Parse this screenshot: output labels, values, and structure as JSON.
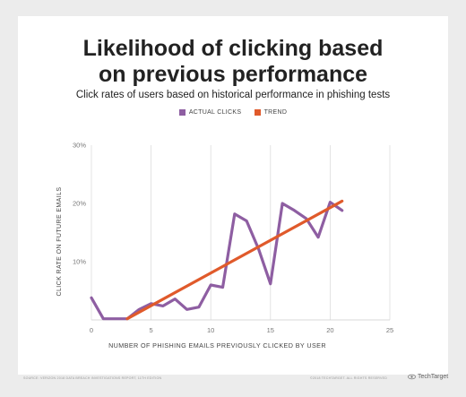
{
  "header": {
    "title_line1": "Likelihood of clicking based",
    "title_line2": "on previous performance",
    "subtitle": "Click rates of users based on historical performance in phishing tests"
  },
  "legend": {
    "items": [
      {
        "label": "ACTUAL CLICKS",
        "color": "#8e5ea2"
      },
      {
        "label": "TREND",
        "color": "#e05a2b"
      }
    ]
  },
  "chart_data": {
    "type": "line",
    "xlabel": "NUMBER OF PHISHING EMAILS PREVIOUSLY CLICKED BY USER",
    "ylabel": "CLICK RATE ON FUTURE EMAILS",
    "xlim": [
      0,
      25
    ],
    "ylim": [
      0,
      30
    ],
    "x_ticks": [
      0,
      5,
      10,
      15,
      20,
      25
    ],
    "y_ticks": [
      10,
      20,
      30
    ],
    "y_tick_labels": [
      "10%",
      "20%",
      "30%"
    ],
    "grid": "vertical",
    "series": [
      {
        "name": "ACTUAL CLICKS",
        "color": "#8e5ea2",
        "x": [
          0,
          1,
          2,
          3,
          4,
          5,
          6,
          7,
          8,
          9,
          10,
          11,
          12,
          13,
          14,
          15,
          16,
          17,
          18,
          19,
          20,
          21
        ],
        "y": [
          3.8,
          0.2,
          0.2,
          0.2,
          1.8,
          2.8,
          2.4,
          3.6,
          1.8,
          2.2,
          6.0,
          5.6,
          18.2,
          17.0,
          12.2,
          6.2,
          20.0,
          18.8,
          17.4,
          14.2,
          20.2,
          18.8
        ]
      },
      {
        "name": "TREND",
        "color": "#e05a2b",
        "x": [
          3,
          21
        ],
        "y": [
          0.2,
          20.4
        ]
      }
    ]
  },
  "footer": {
    "source": "SOURCE: VERIZON 2018 DATA BREACH INVESTIGATIONS REPORT, 11TH EDITION",
    "copyright": "©2018 TECHTARGET. ALL RIGHTS RESERVED",
    "brand": "TechTarget"
  }
}
